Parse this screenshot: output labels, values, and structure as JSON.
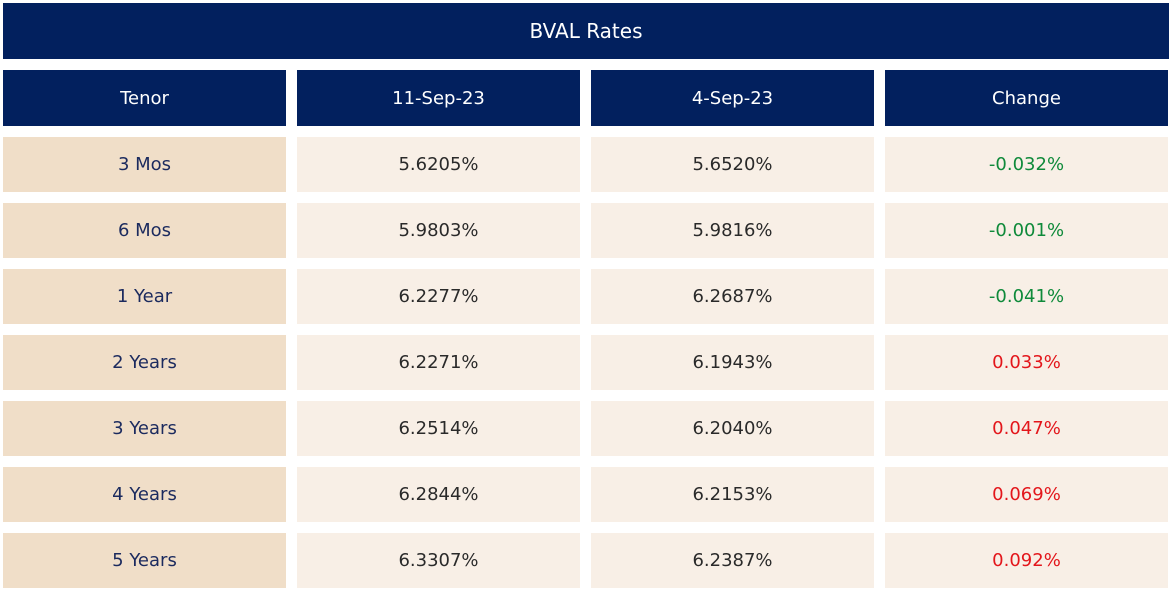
{
  "chart_data": {
    "type": "table",
    "title": "BVAL Rates",
    "columns": [
      "Tenor",
      "11-Sep-23",
      "4-Sep-23",
      "Change"
    ],
    "rows": [
      {
        "tenor": "3 Mos",
        "d1": "5.6205%",
        "d2": "5.6520%",
        "change": "-0.032%"
      },
      {
        "tenor": "6 Mos",
        "d1": "5.9803%",
        "d2": "5.9816%",
        "change": "-0.001%"
      },
      {
        "tenor": "1 Year",
        "d1": "6.2277%",
        "d2": "6.2687%",
        "change": "-0.041%"
      },
      {
        "tenor": "2 Years",
        "d1": "6.2271%",
        "d2": "6.1943%",
        "change": "0.033%"
      },
      {
        "tenor": "3 Years",
        "d1": "6.2514%",
        "d2": "6.2040%",
        "change": "0.047%"
      },
      {
        "tenor": "4 Years",
        "d1": "6.2844%",
        "d2": "6.2153%",
        "change": "0.069%"
      },
      {
        "tenor": "5 Years",
        "d1": "6.3307%",
        "d2": "6.2387%",
        "change": "0.092%"
      }
    ]
  },
  "colors": {
    "header_bg": "#02205e",
    "tenor_bg": "#f0dec8",
    "value_bg": "#f8efe6",
    "negative_change": "#0f8a3a",
    "positive_change": "#e3161b"
  }
}
